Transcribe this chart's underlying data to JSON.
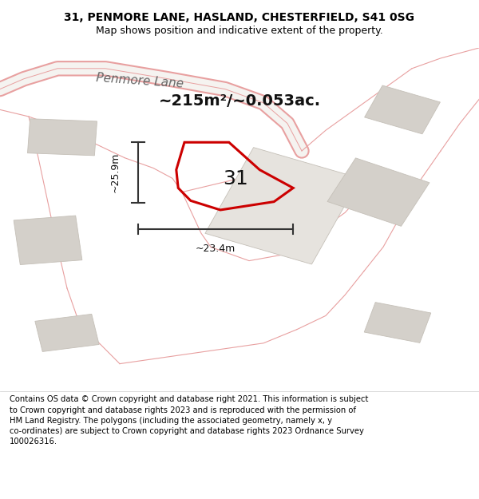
{
  "title_line1": "31, PENMORE LANE, HASLAND, CHESTERFIELD, S41 0SG",
  "title_line2": "Map shows position and indicative extent of the property.",
  "footer_wrapped": "Contains OS data © Crown copyright and database right 2021. This information is subject\nto Crown copyright and database rights 2023 and is reproduced with the permission of\nHM Land Registry. The polygons (including the associated geometry, namely x, y\nco-ordinates) are subject to Crown copyright and database rights 2023 Ordnance Survey\n100026316.",
  "area_label": "~215m²/~0.053ac.",
  "number_label": "31",
  "dim_vertical": "~25.9m",
  "dim_horizontal": "~23.4m",
  "street_label": "Penmore Lane",
  "map_bg": "#f0eeeb",
  "building_color": "#d4d0ca",
  "highlight_color": "#cc0000",
  "dim_color": "#333333",
  "title_bg": "#ffffff",
  "footer_bg": "#ffffff",
  "road_line_color": "#e8a0a0",
  "figsize": [
    6.0,
    6.25
  ],
  "dpi": 100
}
